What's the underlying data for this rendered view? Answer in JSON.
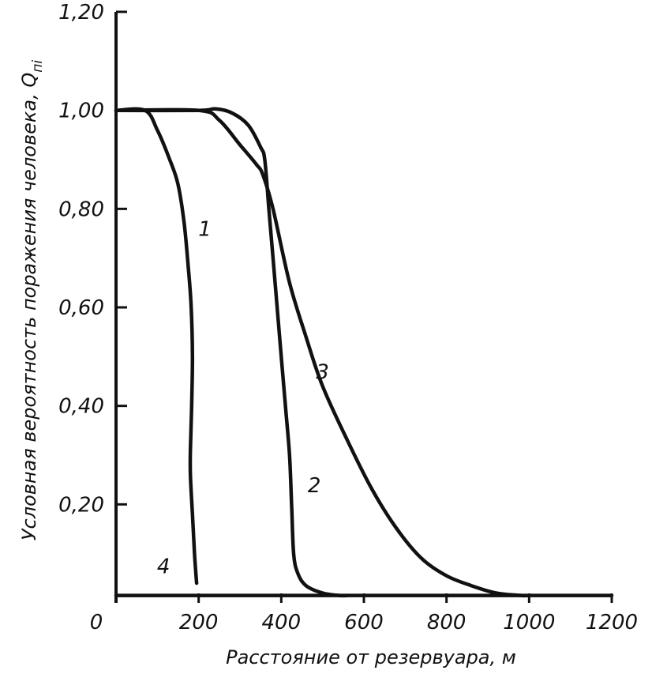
{
  "chart_data": {
    "type": "line",
    "xlabel": "Расстояние от резервуара, м",
    "ylabel": "Условная вероятность поражения человека, Q",
    "ylabel_subscript": "пi",
    "xlim": [
      0,
      1200
    ],
    "ylim": [
      0,
      1.2
    ],
    "x_ticks": [
      {
        "value": 0,
        "label": "0"
      },
      {
        "value": 200,
        "label": "200"
      },
      {
        "value": 400,
        "label": "400"
      },
      {
        "value": 600,
        "label": "600"
      },
      {
        "value": 800,
        "label": "800"
      },
      {
        "value": 1000,
        "label": "1000"
      },
      {
        "value": 1200,
        "label": "1200"
      }
    ],
    "y_ticks": [
      {
        "value": 0.2,
        "label": "0,20"
      },
      {
        "value": 0.4,
        "label": "0,40"
      },
      {
        "value": 0.6,
        "label": "0,60"
      },
      {
        "value": 0.8,
        "label": "0,80"
      },
      {
        "value": 1.0,
        "label": "1,00"
      },
      {
        "value": 1.2,
        "label": "1,20"
      }
    ],
    "grid": false,
    "legend": "none",
    "series": [
      {
        "name": "1",
        "label_at": [
          215,
          0.745
        ],
        "x": [
          0,
          70,
          100,
          130,
          150,
          165,
          175,
          182,
          185,
          183,
          180,
          180,
          185,
          190,
          195
        ],
        "y": [
          1.0,
          1.0,
          0.96,
          0.9,
          0.85,
          0.77,
          0.68,
          0.6,
          0.5,
          0.4,
          0.31,
          0.26,
          0.18,
          0.1,
          0.04
        ]
      },
      {
        "name": "2",
        "label_at": [
          480,
          0.225
        ],
        "x": [
          0,
          200,
          240,
          280,
          320,
          350,
          360,
          370,
          380,
          390,
          400,
          410,
          420,
          425,
          430,
          440,
          460,
          500,
          540,
          560
        ],
        "y": [
          1.0,
          1.0,
          1.003,
          0.995,
          0.97,
          0.925,
          0.9,
          0.8,
          0.7,
          0.6,
          0.5,
          0.4,
          0.3,
          0.2,
          0.1,
          0.06,
          0.035,
          0.02,
          0.015,
          0.015
        ]
      },
      {
        "name": "3",
        "label_at": [
          500,
          0.455
        ],
        "x": [
          0,
          200,
          250,
          300,
          340,
          355,
          380,
          420,
          460,
          500,
          560,
          620,
          680,
          740,
          800,
          860,
          920,
          980,
          1000
        ],
        "y": [
          1.0,
          1.0,
          0.98,
          0.93,
          0.89,
          0.87,
          0.8,
          0.65,
          0.54,
          0.44,
          0.33,
          0.23,
          0.15,
          0.09,
          0.055,
          0.035,
          0.02,
          0.015,
          0.015
        ]
      },
      {
        "name": "4",
        "label_at": [
          115,
          0.06
        ],
        "x": [
          0,
          1200
        ],
        "y": [
          0.015,
          0.015
        ]
      }
    ]
  }
}
